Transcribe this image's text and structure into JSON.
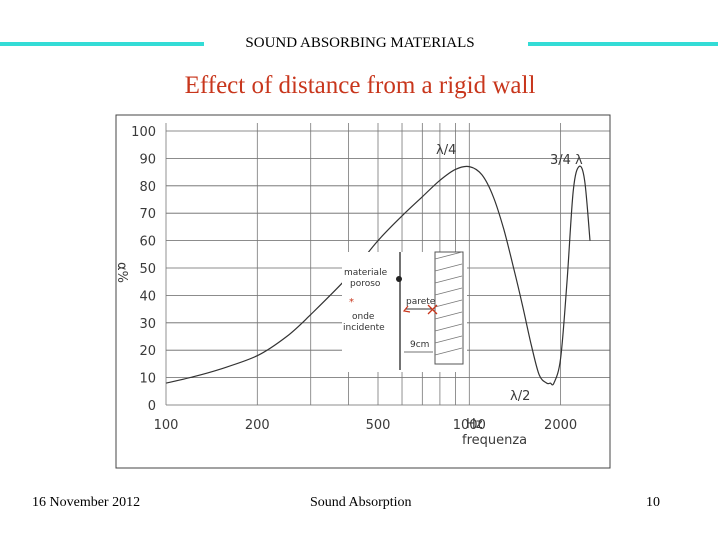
{
  "header": {
    "title": "SOUND ABSORBING MATERIALS",
    "accent_color": "#33dcd6"
  },
  "slide": {
    "title": "Effect of distance from a rigid wall",
    "title_color": "#c8361c"
  },
  "footer": {
    "date": "16 November 2012",
    "center": "Sound Absorption",
    "page": "10"
  },
  "chart_data": {
    "type": "line",
    "x_scale": "log",
    "xlabel": "Hz",
    "xlabel_secondary": "frequenza",
    "ylabel": "α%",
    "ylim": [
      0,
      100
    ],
    "xlim": [
      100,
      2500
    ],
    "grid": true,
    "y_ticks": [
      "0",
      "10",
      "20",
      "30",
      "40",
      "50",
      "60",
      "70",
      "80",
      "90",
      "100"
    ],
    "x_ticks": [
      {
        "value": 100,
        "label": "100"
      },
      {
        "value": 200,
        "label": "200"
      },
      {
        "value": 500,
        "label": "500"
      },
      {
        "value": 1000,
        "label": "1000"
      },
      {
        "value": 2000,
        "label": "2000"
      }
    ],
    "series": [
      {
        "x": [
          100,
          120,
          150,
          200,
          250,
          300,
          400,
          500,
          600,
          700,
          800,
          900,
          1000,
          1100,
          1200,
          1300,
          1400,
          1500,
          1600,
          1700,
          1800,
          1850,
          1900,
          2000,
          2100,
          2200,
          2300,
          2400,
          2500
        ],
        "y": [
          8,
          10,
          13,
          18,
          25,
          33,
          47,
          60,
          69,
          76,
          82,
          86,
          87,
          84,
          76,
          64,
          50,
          36,
          22,
          11,
          8,
          8,
          8,
          17,
          45,
          78,
          87,
          82,
          60
        ]
      }
    ],
    "annotations": [
      {
        "text": "λ/4",
        "x": 950
      },
      {
        "text": "λ/2",
        "x": 1850
      },
      {
        "text": "3/4 λ",
        "x": 2250
      }
    ],
    "inset": {
      "labels": [
        "materiale",
        "poroso",
        "onde",
        "incidente",
        "parete",
        "9cm"
      ]
    }
  }
}
